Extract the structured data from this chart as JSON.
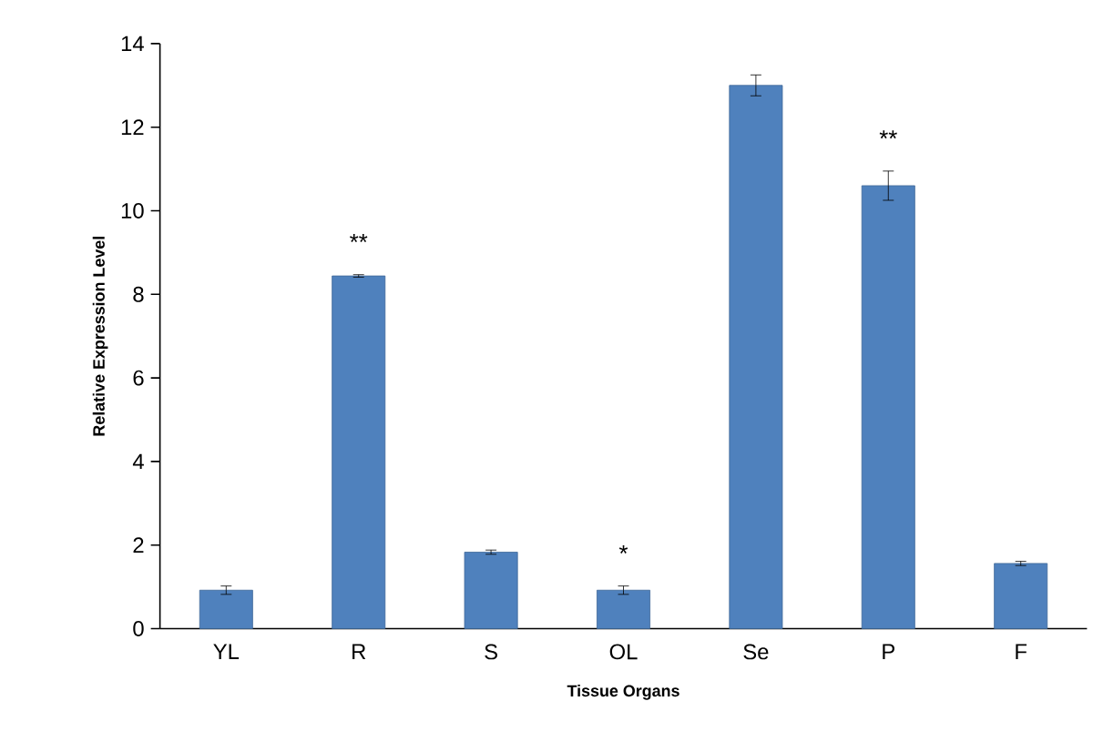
{
  "chart_data": {
    "type": "bar",
    "xlabel": "Tissue Organs",
    "ylabel": "Relative Expression Level",
    "categories": [
      "YL",
      "R",
      "S",
      "OL",
      "Se",
      "P",
      "F"
    ],
    "values": [
      0.92,
      8.44,
      1.83,
      0.92,
      13.0,
      10.6,
      1.56
    ],
    "errors": [
      0.1,
      0.03,
      0.05,
      0.1,
      0.25,
      0.35,
      0.05
    ],
    "color": "#4f81bd",
    "ylim": [
      0,
      14
    ],
    "yticks": [
      0,
      2,
      4,
      6,
      8,
      10,
      12,
      14
    ],
    "annotations": [
      {
        "text": "**",
        "x": "R",
        "y": 8.44
      },
      {
        "text": "*",
        "x": "OL",
        "y": 0.92
      },
      {
        "text": "**",
        "x": "P",
        "y": 10.6
      }
    ]
  }
}
